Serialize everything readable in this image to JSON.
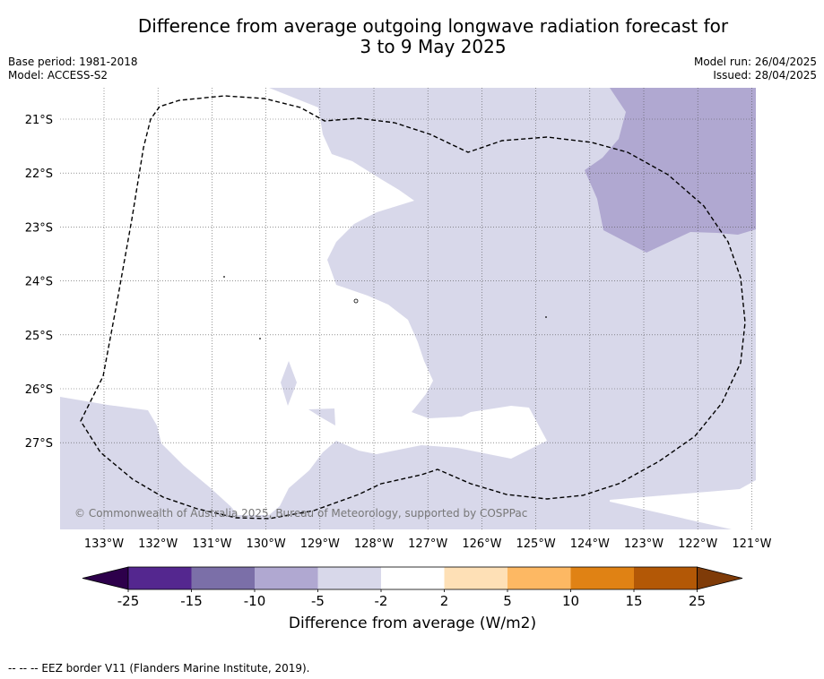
{
  "title_line1": "Difference from average outgoing longwave radiation forecast for",
  "title_line2": "3 to 9 May 2025",
  "base_period": "Base period: 1981-2018",
  "model": "Model: ACCESS-S2",
  "model_run": "Model run: 26/04/2025",
  "issued": "Issued: 28/04/2025",
  "copyright": "© Commonwealth of Australia 2025, Bureau of Meteorology, supported by COSPPac",
  "footer_note": "--  --  -- EEZ border V11 (Flanders Marine Institute, 2019).",
  "lat_labels": [
    "21°S",
    "22°S",
    "23°S",
    "24°S",
    "25°S",
    "26°S",
    "27°S"
  ],
  "lon_labels": [
    "133°W",
    "132°W",
    "131°W",
    "130°W",
    "129°W",
    "128°W",
    "127°W",
    "126°W",
    "125°W",
    "124°W",
    "123°W",
    "122°W",
    "121°W"
  ],
  "colorbar": {
    "title": "Difference from average (W/m2)",
    "tick_labels": [
      "-25",
      "-15",
      "-10",
      "-5",
      "-2",
      "2",
      "5",
      "10",
      "15",
      "25"
    ],
    "colors": [
      "#54278f",
      "#7b6fa8",
      "#b0a8d1",
      "#d8d8ea",
      "#ffffff",
      "#fee0b6",
      "#fdb863",
      "#e08214",
      "#b35806"
    ],
    "extend_low_color": "#2d004b",
    "extend_high_color": "#7f3b08"
  },
  "colors": {
    "weak_negative": "#d8d8ea",
    "moderate_negative": "#b0a8d1"
  }
}
